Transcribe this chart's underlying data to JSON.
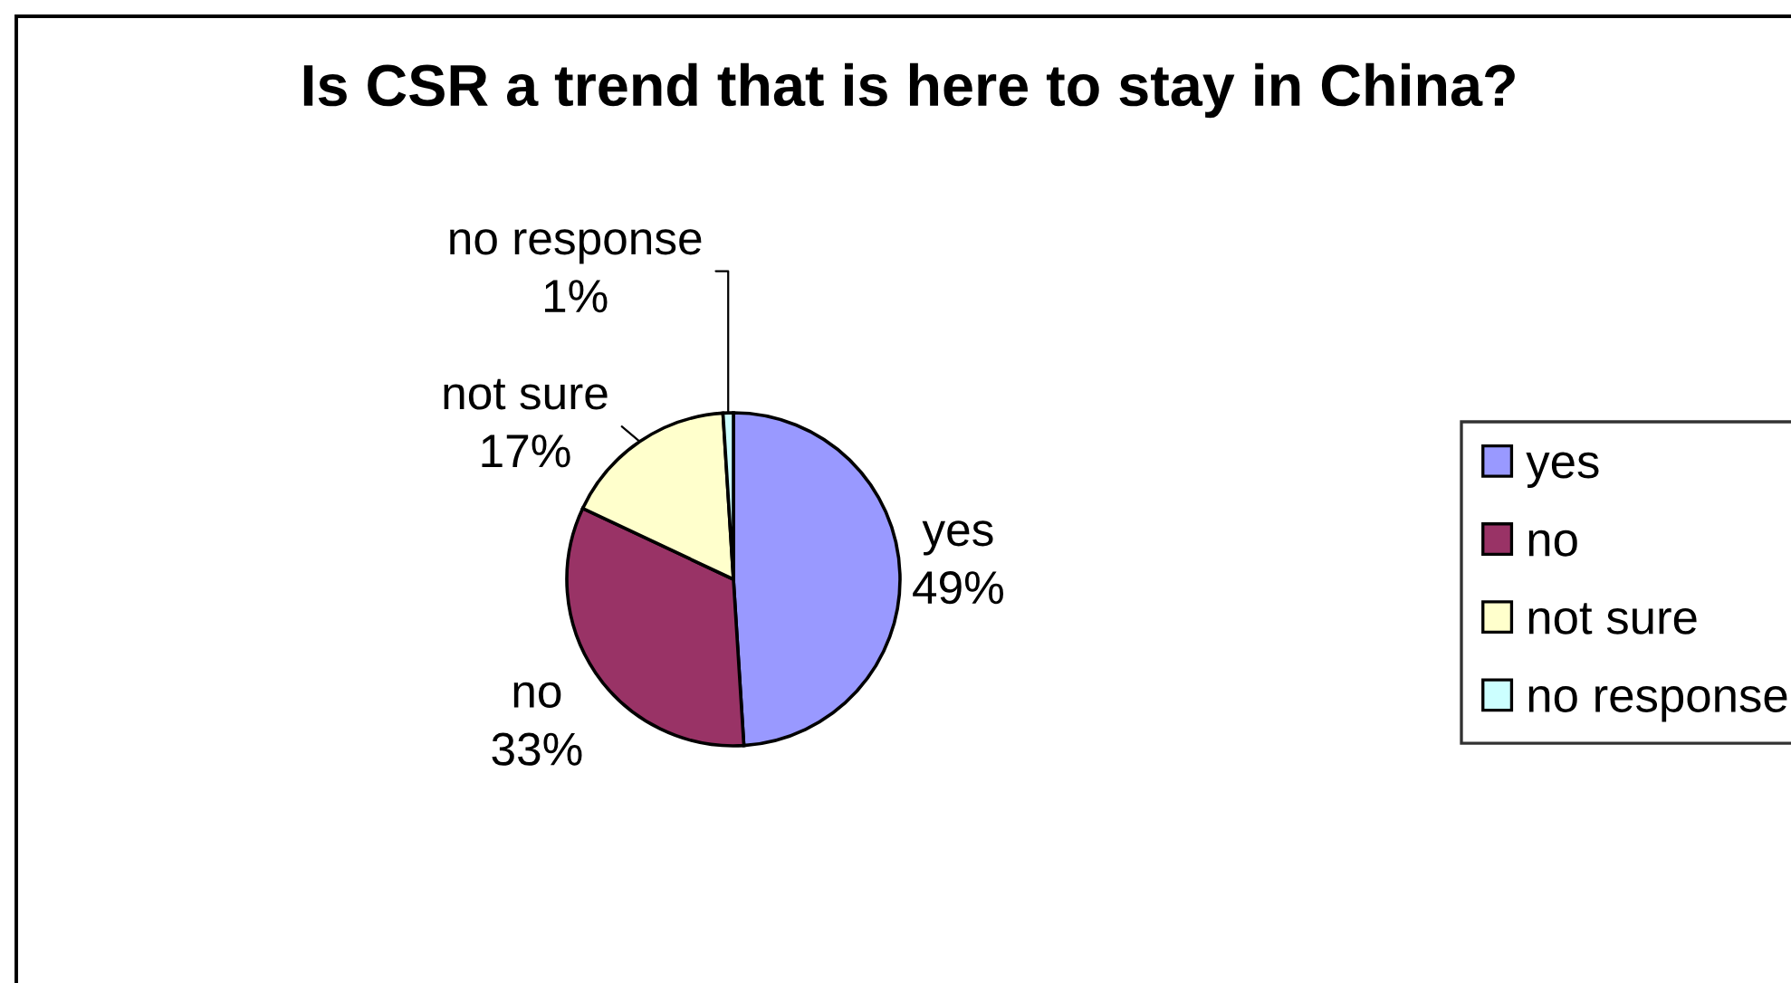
{
  "chart_data": {
    "type": "pie",
    "title": "Is CSR a trend that is here to stay in China?",
    "categories": [
      "yes",
      "no",
      "not sure",
      "no response"
    ],
    "values": [
      49,
      33,
      17,
      1
    ],
    "colors": [
      "#9999ff",
      "#993366",
      "#ffffcc",
      "#ccffff"
    ],
    "value_labels": [
      "49%",
      "33%",
      "17%",
      "1%"
    ],
    "legend": "right"
  }
}
